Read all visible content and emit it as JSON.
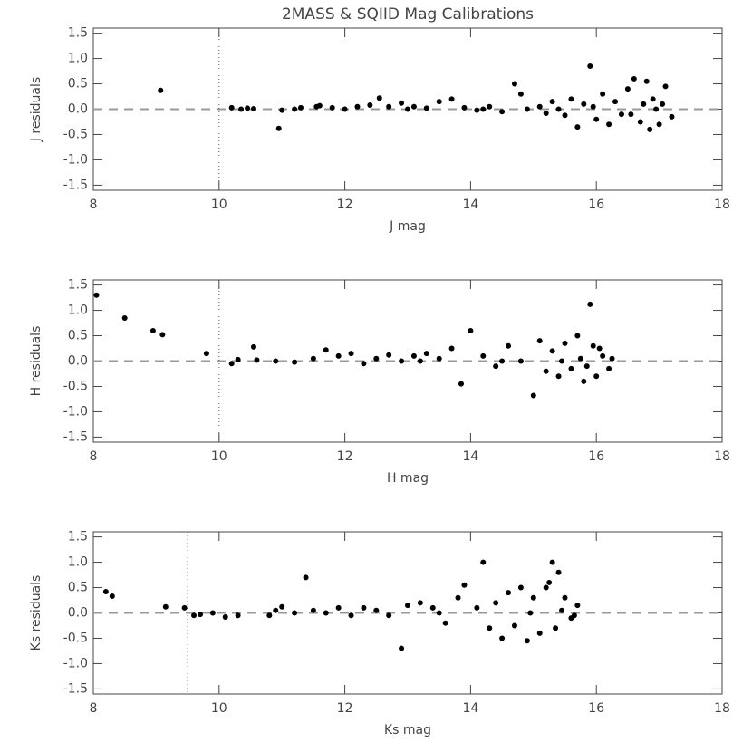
{
  "chart_data": [
    {
      "type": "scatter",
      "title": "2MASS & SQIID Mag Calibrations",
      "xlabel": "J mag",
      "ylabel": "J residuals",
      "xlim": [
        8,
        18
      ],
      "ylim": [
        -1.6,
        1.6
      ],
      "xticks": [
        8,
        10,
        12,
        14,
        16,
        18
      ],
      "yticks": [
        1.5,
        {
          "value": 1,
          "label": "1.0"
        },
        0.5,
        {
          "value": 0,
          "label": "0.0"
        },
        -0.5,
        {
          "value": -1,
          "label": "-1.0"
        },
        -1.5
      ],
      "vline": 10,
      "hline": 0,
      "color": "#000000",
      "x": [
        9.07,
        10.2,
        10.35,
        10.45,
        10.55,
        10.95,
        11.0,
        11.2,
        11.3,
        11.55,
        11.6,
        11.8,
        12.0,
        12.2,
        12.4,
        12.55,
        12.7,
        12.9,
        13.1,
        13.3,
        13.5,
        13.7,
        13.9,
        14.1,
        14.3,
        14.5,
        14.7,
        14.8,
        14.9,
        15.1,
        15.2,
        15.3,
        15.5,
        15.6,
        15.7,
        15.8,
        15.9,
        16.0,
        16.1,
        16.2,
        16.3,
        16.4,
        16.5,
        16.6,
        16.7,
        16.8,
        16.9,
        17.0,
        17.1,
        17.2,
        16.55,
        16.75,
        16.95,
        15.95,
        15.4,
        14.2,
        13.0,
        16.85,
        17.05
      ],
      "values": [
        0.37,
        0.03,
        0.0,
        0.02,
        0.01,
        -0.38,
        -0.02,
        0.0,
        0.03,
        0.05,
        0.07,
        0.03,
        0.0,
        0.05,
        0.08,
        0.22,
        0.05,
        0.12,
        0.05,
        0.02,
        0.15,
        0.2,
        0.03,
        -0.02,
        0.05,
        -0.05,
        0.5,
        0.3,
        0.0,
        0.05,
        -0.08,
        0.15,
        -0.12,
        0.2,
        -0.35,
        0.1,
        0.85,
        -0.2,
        0.3,
        -0.3,
        0.15,
        -0.1,
        0.4,
        0.6,
        -0.25,
        0.55,
        0.2,
        -0.3,
        0.45,
        -0.15,
        -0.1,
        0.1,
        0.0,
        0.05,
        0.0,
        0.0,
        0.0,
        -0.4,
        0.1
      ]
    },
    {
      "type": "scatter",
      "xlabel": "H mag",
      "ylabel": "H residuals",
      "xlim": [
        8,
        18
      ],
      "ylim": [
        -1.6,
        1.6
      ],
      "xticks": [
        8,
        10,
        12,
        14,
        16,
        18
      ],
      "yticks": [
        1.5,
        {
          "value": 1,
          "label": "1.0"
        },
        0.5,
        {
          "value": 0,
          "label": "0.0"
        },
        -0.5,
        {
          "value": -1,
          "label": "-1.0"
        },
        -1.5
      ],
      "vline": 10,
      "hline": 0,
      "color": "#000000",
      "x": [
        8.05,
        8.5,
        8.95,
        9.1,
        9.8,
        10.2,
        10.3,
        10.55,
        10.6,
        10.9,
        11.2,
        11.5,
        11.7,
        11.9,
        12.1,
        12.3,
        12.5,
        12.7,
        12.9,
        13.1,
        13.3,
        13.5,
        13.7,
        13.85,
        14.0,
        14.2,
        14.4,
        14.6,
        14.8,
        15.0,
        15.1,
        15.2,
        15.3,
        15.4,
        15.5,
        15.6,
        15.7,
        15.8,
        15.9,
        15.95,
        16.0,
        16.1,
        16.2,
        16.25,
        15.75,
        15.45,
        14.5,
        13.2,
        15.85,
        16.05
      ],
      "values": [
        1.3,
        0.85,
        0.6,
        0.52,
        0.15,
        -0.05,
        0.03,
        0.28,
        0.02,
        0.0,
        -0.02,
        0.05,
        0.22,
        0.1,
        0.15,
        -0.05,
        0.05,
        0.12,
        0.0,
        0.1,
        0.15,
        0.05,
        0.25,
        -0.45,
        0.6,
        0.1,
        -0.1,
        0.3,
        0.0,
        -0.68,
        0.4,
        -0.2,
        0.2,
        -0.3,
        0.35,
        -0.15,
        0.5,
        -0.4,
        1.12,
        0.3,
        -0.3,
        0.1,
        -0.15,
        0.05,
        0.05,
        0.0,
        0.0,
        0.0,
        -0.1,
        0.25
      ]
    },
    {
      "type": "scatter",
      "xlabel": "Ks mag",
      "ylabel": "Ks residuals",
      "xlim": [
        8,
        18
      ],
      "ylim": [
        -1.6,
        1.6
      ],
      "xticks": [
        8,
        10,
        12,
        14,
        16,
        18
      ],
      "yticks": [
        1.5,
        {
          "value": 1,
          "label": "1.0"
        },
        0.5,
        {
          "value": 0,
          "label": "0.0"
        },
        -0.5,
        {
          "value": -1,
          "label": "-1.0"
        },
        -1.5
      ],
      "vline": 9.5,
      "hline": 0,
      "color": "#000000",
      "x": [
        8.2,
        8.3,
        9.15,
        9.45,
        9.6,
        9.7,
        9.9,
        10.1,
        10.3,
        10.8,
        10.9,
        11.0,
        11.2,
        11.38,
        11.5,
        11.7,
        11.9,
        12.1,
        12.3,
        12.5,
        12.7,
        12.9,
        13.0,
        13.2,
        13.4,
        13.6,
        13.8,
        13.9,
        14.1,
        14.2,
        14.3,
        14.4,
        14.5,
        14.6,
        14.7,
        14.8,
        14.9,
        15.0,
        15.1,
        15.2,
        15.3,
        15.4,
        15.35,
        15.5,
        15.6,
        15.7,
        15.65,
        15.45,
        14.95,
        13.5,
        15.25
      ],
      "values": [
        0.42,
        0.33,
        0.12,
        0.1,
        -0.05,
        -0.03,
        0.0,
        -0.08,
        -0.05,
        -0.05,
        0.05,
        0.12,
        0.0,
        0.7,
        0.05,
        0.0,
        0.1,
        -0.05,
        0.1,
        0.05,
        -0.05,
        -0.7,
        0.15,
        0.2,
        0.1,
        -0.2,
        0.3,
        0.55,
        0.1,
        1.0,
        -0.3,
        0.2,
        -0.5,
        0.4,
        -0.25,
        0.5,
        -0.55,
        0.3,
        -0.4,
        0.5,
        1.0,
        0.8,
        -0.3,
        0.3,
        -0.1,
        0.15,
        -0.05,
        0.05,
        0.0,
        0.0,
        0.6
      ]
    }
  ]
}
